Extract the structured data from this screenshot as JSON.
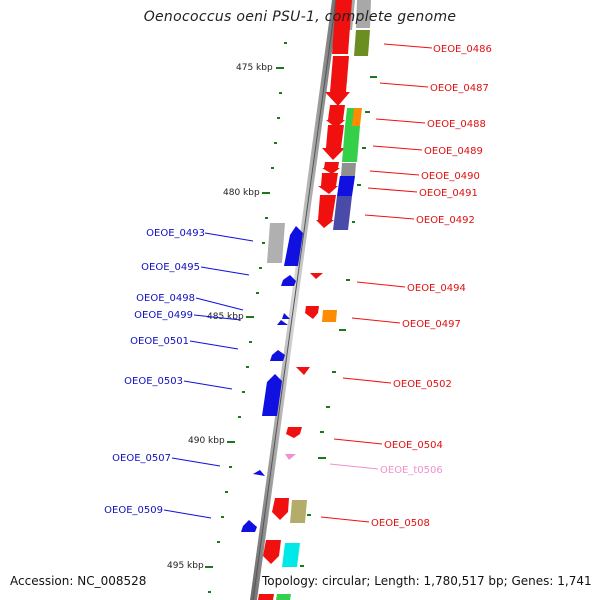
{
  "title": "Oenococcus oeni PSU-1, complete genome",
  "accession": "Accession: NC_008528",
  "topology": "Topology: circular; Length: 1,780,517 bp; Genes: 1,741",
  "colors": {
    "red": "#f01010",
    "blue": "#1010e0",
    "grey": "#a8a8a8",
    "olive": "#6b8e23",
    "green": "#35d04a",
    "orange": "#ff8c00",
    "navy": "#4a4aa8",
    "khaki": "#b4ac6a",
    "cyan": "#00e8e8",
    "pink": "#f090d0",
    "tick": "#1a7a1a"
  },
  "scale_labels": [
    "475 kbp",
    "480 kbp",
    "485 kbp",
    "490 kbp",
    "495 kbp"
  ],
  "gene_labels_right": [
    {
      "text": "OEOE_0486",
      "color": "red"
    },
    {
      "text": "OEOE_0487",
      "color": "red"
    },
    {
      "text": "OEOE_0488",
      "color": "red"
    },
    {
      "text": "OEOE_0489",
      "color": "red"
    },
    {
      "text": "OEOE_0490",
      "color": "red"
    },
    {
      "text": "OEOE_0491",
      "color": "red"
    },
    {
      "text": "OEOE_0492",
      "color": "red"
    },
    {
      "text": "OEOE_0494",
      "color": "red"
    },
    {
      "text": "OEOE_0497",
      "color": "red"
    },
    {
      "text": "OEOE_0502",
      "color": "red"
    },
    {
      "text": "OEOE_0504",
      "color": "red"
    },
    {
      "text": "OEOE_t0506",
      "color": "pink"
    },
    {
      "text": "OEOE_0508",
      "color": "red"
    }
  ],
  "gene_labels_left": [
    {
      "text": "OEOE_0493",
      "color": "blue"
    },
    {
      "text": "OEOE_0495",
      "color": "blue"
    },
    {
      "text": "OEOE_0498",
      "color": "blue"
    },
    {
      "text": "OEOE_0499",
      "color": "blue"
    },
    {
      "text": "OEOE_0501",
      "color": "blue"
    },
    {
      "text": "OEOE_0503",
      "color": "blue"
    },
    {
      "text": "OEOE_0507",
      "color": "blue"
    },
    {
      "text": "OEOE_0509",
      "color": "blue"
    }
  ]
}
